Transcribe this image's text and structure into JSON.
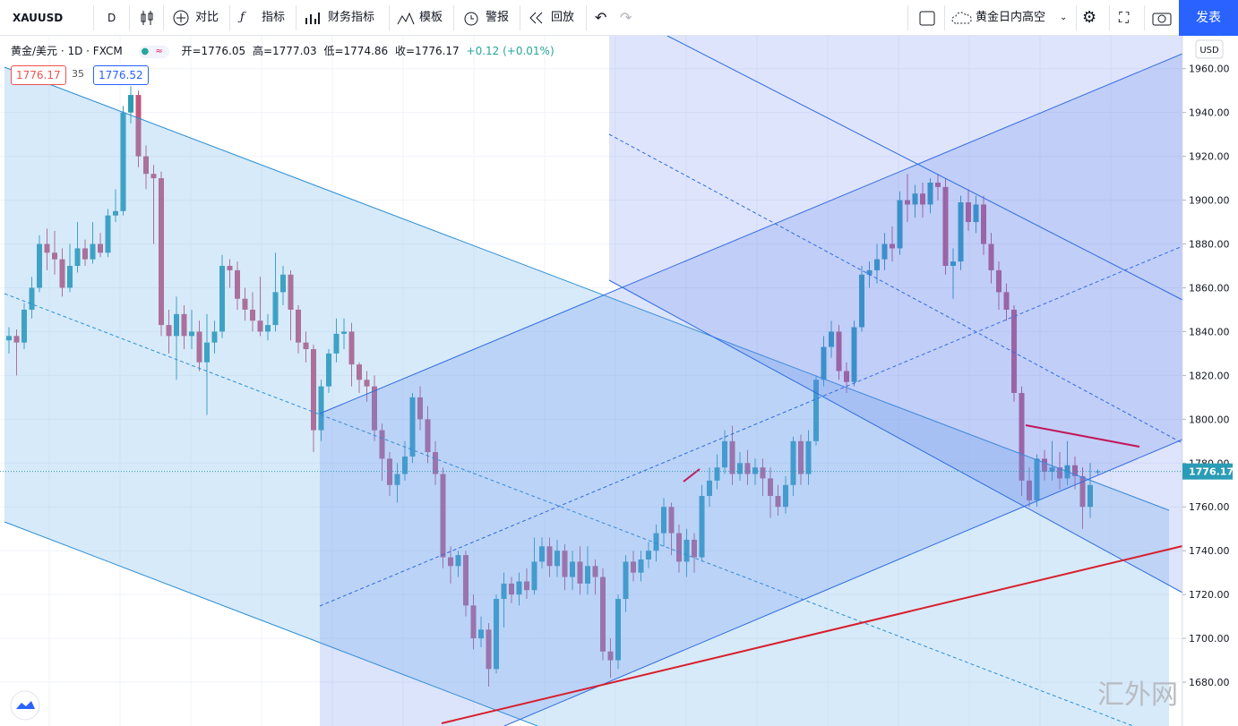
{
  "toolbar": {
    "symbol": "XAUUSD",
    "interval": "D",
    "items": [
      "对比",
      "指标",
      "财务指标",
      "模板",
      "警报",
      "回放"
    ],
    "layout_name": "黄金日内高空",
    "publish": "发表"
  },
  "legend": {
    "title": "黄金/美元 · 1D · FXCM",
    "open": "开=1776.05",
    "high": "高=1777.03",
    "low": "低=1774.86",
    "close": "收=1776.17",
    "change": "+0.12 (+0.01%)",
    "bid": "1776.17",
    "spread": "35",
    "ask": "1776.52"
  },
  "chart_data": {
    "type": "candlestick",
    "open": [
      1836,
      1838,
      1835,
      1850,
      1860,
      1880,
      1876,
      1873,
      1860,
      1870,
      1878,
      1873,
      1880,
      1876,
      1893,
      1895,
      1940,
      1948,
      1920,
      1912,
      1910,
      1843,
      1838,
      1848,
      1838,
      1840,
      1826,
      1835,
      1840,
      1870,
      1868,
      1855,
      1850,
      1845,
      1840,
      1843,
      1858,
      1866,
      1850,
      1835,
      1832,
      1795,
      1815,
      1830,
      1839,
      1840,
      1825,
      1818,
      1815,
      1795,
      1782,
      1770,
      1775,
      1783,
      1810,
      1800,
      1785,
      1775,
      1737,
      1733,
      1738,
      1715,
      1700,
      1704,
      1686,
      1718,
      1725,
      1720,
      1726,
      1722,
      1735,
      1742,
      1733,
      1740,
      1728,
      1735,
      1725,
      1733,
      1728,
      1694,
      1690,
      1718,
      1735,
      1730,
      1736,
      1740,
      1748,
      1760,
      1748,
      1735,
      1745,
      1737,
      1765,
      1772,
      1778,
      1790,
      1775,
      1780,
      1775,
      1778,
      1773,
      1765,
      1760,
      1770,
      1790,
      1775,
      1790,
      1818,
      1833,
      1840,
      1822,
      1817,
      1842,
      1866,
      1868,
      1873,
      1880,
      1878,
      1900,
      1898,
      1903,
      1898,
      1908,
      1906,
      1870,
      1872,
      1899,
      1890,
      1898,
      1880,
      1868,
      1858,
      1850,
      1812,
      1772,
      1763,
      1782,
      1776,
      1778,
      1773,
      1779,
      1774,
      1760,
      1776.05
    ],
    "high": [
      1842,
      1841,
      1853,
      1865,
      1884,
      1887,
      1886,
      1878,
      1880,
      1890,
      1882,
      1890,
      1885,
      1896,
      1905,
      1943,
      1952,
      1950,
      1925,
      1916,
      1913,
      1850,
      1856,
      1852,
      1850,
      1845,
      1848,
      1845,
      1875,
      1873,
      1872,
      1860,
      1858,
      1865,
      1848,
      1876,
      1870,
      1868,
      1852,
      1840,
      1834,
      1818,
      1832,
      1846,
      1846,
      1844,
      1826,
      1822,
      1820,
      1798,
      1785,
      1780,
      1790,
      1812,
      1815,
      1806,
      1790,
      1778,
      1742,
      1740,
      1740,
      1720,
      1710,
      1707,
      1720,
      1730,
      1728,
      1730,
      1732,
      1746,
      1746,
      1746,
      1745,
      1743,
      1740,
      1742,
      1742,
      1736,
      1732,
      1700,
      1720,
      1738,
      1740,
      1740,
      1744,
      1752,
      1764,
      1762,
      1752,
      1750,
      1748,
      1770,
      1778,
      1784,
      1795,
      1797,
      1785,
      1786,
      1782,
      1782,
      1778,
      1770,
      1774,
      1792,
      1793,
      1795,
      1820,
      1838,
      1845,
      1843,
      1826,
      1845,
      1870,
      1872,
      1880,
      1885,
      1888,
      1904,
      1912,
      1907,
      1908,
      1910,
      1912,
      1910,
      1878,
      1902,
      1905,
      1902,
      1902,
      1885,
      1872,
      1862,
      1852,
      1815,
      1778,
      1784,
      1786,
      1790,
      1785,
      1790,
      1783,
      1778,
      1780,
      1777.03
    ],
    "low": [
      1830,
      1820,
      1832,
      1846,
      1858,
      1868,
      1866,
      1856,
      1858,
      1867,
      1870,
      1871,
      1874,
      1874,
      1890,
      1893,
      1935,
      1915,
      1905,
      1880,
      1838,
      1830,
      1818,
      1832,
      1832,
      1822,
      1802,
      1830,
      1837,
      1860,
      1850,
      1845,
      1840,
      1838,
      1836,
      1840,
      1852,
      1836,
      1830,
      1826,
      1785,
      1790,
      1812,
      1826,
      1832,
      1815,
      1812,
      1808,
      1790,
      1772,
      1765,
      1762,
      1772,
      1780,
      1795,
      1780,
      1770,
      1732,
      1725,
      1728,
      1710,
      1695,
      1696,
      1678,
      1684,
      1705,
      1716,
      1715,
      1718,
      1720,
      1732,
      1728,
      1728,
      1722,
      1722,
      1720,
      1720,
      1720,
      1690,
      1682,
      1686,
      1712,
      1726,
      1726,
      1732,
      1735,
      1742,
      1738,
      1730,
      1728,
      1730,
      1735,
      1760,
      1768,
      1775,
      1770,
      1772,
      1770,
      1770,
      1765,
      1755,
      1756,
      1757,
      1765,
      1770,
      1770,
      1788,
      1815,
      1828,
      1818,
      1812,
      1815,
      1840,
      1860,
      1862,
      1868,
      1872,
      1875,
      1890,
      1892,
      1892,
      1894,
      1900,
      1866,
      1855,
      1868,
      1886,
      1885,
      1875,
      1862,
      1850,
      1845,
      1808,
      1765,
      1760,
      1760,
      1772,
      1772,
      1768,
      1770,
      1768,
      1750,
      1755,
      1774.86
    ],
    "close": [
      1838,
      1835,
      1850,
      1860,
      1880,
      1876,
      1873,
      1860,
      1870,
      1878,
      1873,
      1880,
      1876,
      1893,
      1895,
      1940,
      1948,
      1920,
      1912,
      1910,
      1843,
      1838,
      1848,
      1838,
      1840,
      1826,
      1835,
      1840,
      1870,
      1868,
      1855,
      1850,
      1845,
      1840,
      1843,
      1858,
      1866,
      1850,
      1835,
      1832,
      1795,
      1815,
      1830,
      1839,
      1840,
      1825,
      1818,
      1815,
      1795,
      1782,
      1770,
      1775,
      1783,
      1810,
      1800,
      1785,
      1775,
      1737,
      1733,
      1738,
      1715,
      1700,
      1704,
      1686,
      1718,
      1725,
      1720,
      1726,
      1722,
      1735,
      1742,
      1733,
      1740,
      1728,
      1735,
      1725,
      1733,
      1728,
      1694,
      1690,
      1718,
      1735,
      1730,
      1736,
      1740,
      1748,
      1760,
      1748,
      1735,
      1745,
      1737,
      1765,
      1772,
      1778,
      1790,
      1775,
      1780,
      1775,
      1778,
      1773,
      1765,
      1760,
      1770,
      1790,
      1775,
      1790,
      1818,
      1833,
      1840,
      1822,
      1817,
      1842,
      1866,
      1868,
      1873,
      1880,
      1878,
      1900,
      1898,
      1903,
      1898,
      1908,
      1906,
      1870,
      1872,
      1899,
      1890,
      1898,
      1880,
      1868,
      1858,
      1850,
      1812,
      1772,
      1763,
      1782,
      1776,
      1778,
      1773,
      1779,
      1774,
      1760,
      1770,
      1776.17
    ],
    "up_color": "#2b9cb6",
    "down_color": "#c2577e",
    "ylim": [
      1660,
      1975
    ],
    "yticks": [
      {
        "value": 1680,
        "label": "1680.00"
      },
      {
        "value": 1700,
        "label": "1700.00"
      },
      {
        "value": 1720,
        "label": "1720.00"
      },
      {
        "value": 1740,
        "label": "1740.00"
      },
      {
        "value": 1760,
        "label": "1760.00"
      },
      {
        "value": 1780,
        "label": "1780.00"
      },
      {
        "value": 1800,
        "label": "1800.00"
      },
      {
        "value": 1820,
        "label": "1820.00"
      },
      {
        "value": 1840,
        "label": "1840.00"
      },
      {
        "value": 1860,
        "label": "1860.00"
      },
      {
        "value": 1880,
        "label": "1880.00"
      },
      {
        "value": 1900,
        "label": "1900.00"
      },
      {
        "value": 1920,
        "label": "1920.00"
      },
      {
        "value": 1940,
        "label": "1940.00"
      },
      {
        "value": 1960,
        "label": "1960.00"
      }
    ],
    "currency": "USD",
    "last_price": 1776.17,
    "grid": true
  },
  "watermark": "汇外网"
}
